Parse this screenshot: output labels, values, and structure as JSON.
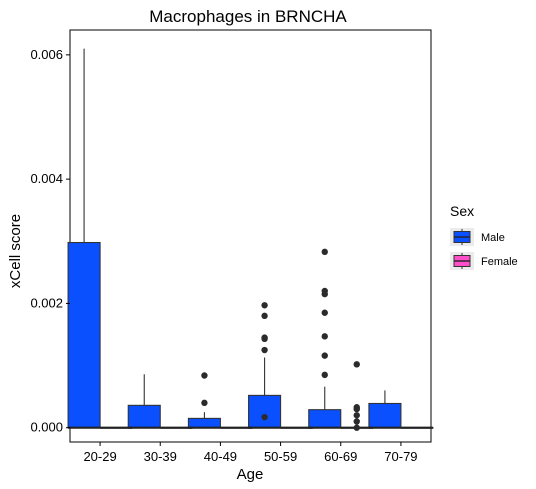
{
  "chart_data": {
    "type": "boxplot",
    "title": "Macrophages in BRNCHA",
    "xlabel": "Age",
    "ylabel": "xCell score",
    "categories": [
      "20-29",
      "30-39",
      "40-49",
      "50-59",
      "60-69",
      "70-79"
    ],
    "ylim": [
      -0.00023,
      0.0064
    ],
    "yticks": [
      0.0,
      0.002,
      0.004,
      0.006
    ],
    "ytick_labels": [
      "0.000",
      "0.002",
      "0.004",
      "0.006"
    ],
    "grid": false,
    "legend": {
      "title": "Sex",
      "position": "right",
      "entries": [
        {
          "label": "Male",
          "color": "#0a50ff"
        },
        {
          "label": "Female",
          "color": "#ff4fc8"
        }
      ]
    },
    "series": [
      {
        "name": "Male",
        "color": "#0a50ff",
        "boxes": [
          {
            "category": "20-29",
            "min": 0.0,
            "q1": 0.0,
            "median": 0.0,
            "q3": 0.00298,
            "max": 0.0061,
            "outliers": []
          },
          {
            "category": "30-39",
            "min": 0.0,
            "q1": 0.0,
            "median": 0.0,
            "q3": 0.00036,
            "max": 0.00086,
            "outliers": []
          },
          {
            "category": "40-49",
            "min": 0.0,
            "q1": 0.0,
            "median": 0.0,
            "q3": 0.00015,
            "max": 0.00025,
            "outliers": [
              0.0004,
              0.00084
            ]
          },
          {
            "category": "50-59",
            "min": 0.0,
            "q1": 0.0,
            "median": 0.0,
            "q3": 0.00052,
            "max": 0.00113,
            "outliers": [
              0.00017,
              0.00125,
              0.00143,
              0.00145,
              0.0018,
              0.00197
            ]
          },
          {
            "category": "60-69",
            "min": 0.0,
            "q1": 0.0,
            "median": 0.0,
            "q3": 0.00029,
            "max": 0.00066,
            "outliers": [
              0.00085,
              0.00116,
              0.00147,
              0.00185,
              0.00215,
              0.0022,
              0.00283
            ]
          },
          {
            "category": "70-79",
            "min": 0.0,
            "q1": 0.0,
            "median": 0.0,
            "q3": 0.00039,
            "max": 0.0006,
            "outliers": []
          }
        ]
      },
      {
        "name": "Female",
        "color": "#ff4fc8",
        "boxes": [
          {
            "category": "20-29",
            "min": 0.0,
            "q1": 0.0,
            "median": 0.0,
            "q3": 0.0,
            "max": 0.0,
            "outliers": []
          },
          {
            "category": "30-39",
            "min": 0.0,
            "q1": 0.0,
            "median": 0.0,
            "q3": 0.0,
            "max": 0.0,
            "outliers": []
          },
          {
            "category": "40-49",
            "min": 0.0,
            "q1": 0.0,
            "median": 0.0,
            "q3": 0.0,
            "max": 0.0,
            "outliers": []
          },
          {
            "category": "50-59",
            "min": 0.0,
            "q1": 0.0,
            "median": 0.0,
            "q3": 0.0,
            "max": 0.0,
            "outliers": []
          },
          {
            "category": "60-69",
            "min": 0.0,
            "q1": 0.0,
            "median": 0.0,
            "q3": 0.0,
            "max": 0.0,
            "outliers": [
              0.0,
              0.0001,
              0.0002,
              0.0003,
              0.00033,
              0.00102
            ]
          },
          {
            "category": "70-79",
            "min": 0.0,
            "q1": 0.0,
            "median": 0.0,
            "q3": 0.0,
            "max": 0.0,
            "outliers": []
          }
        ]
      }
    ]
  }
}
